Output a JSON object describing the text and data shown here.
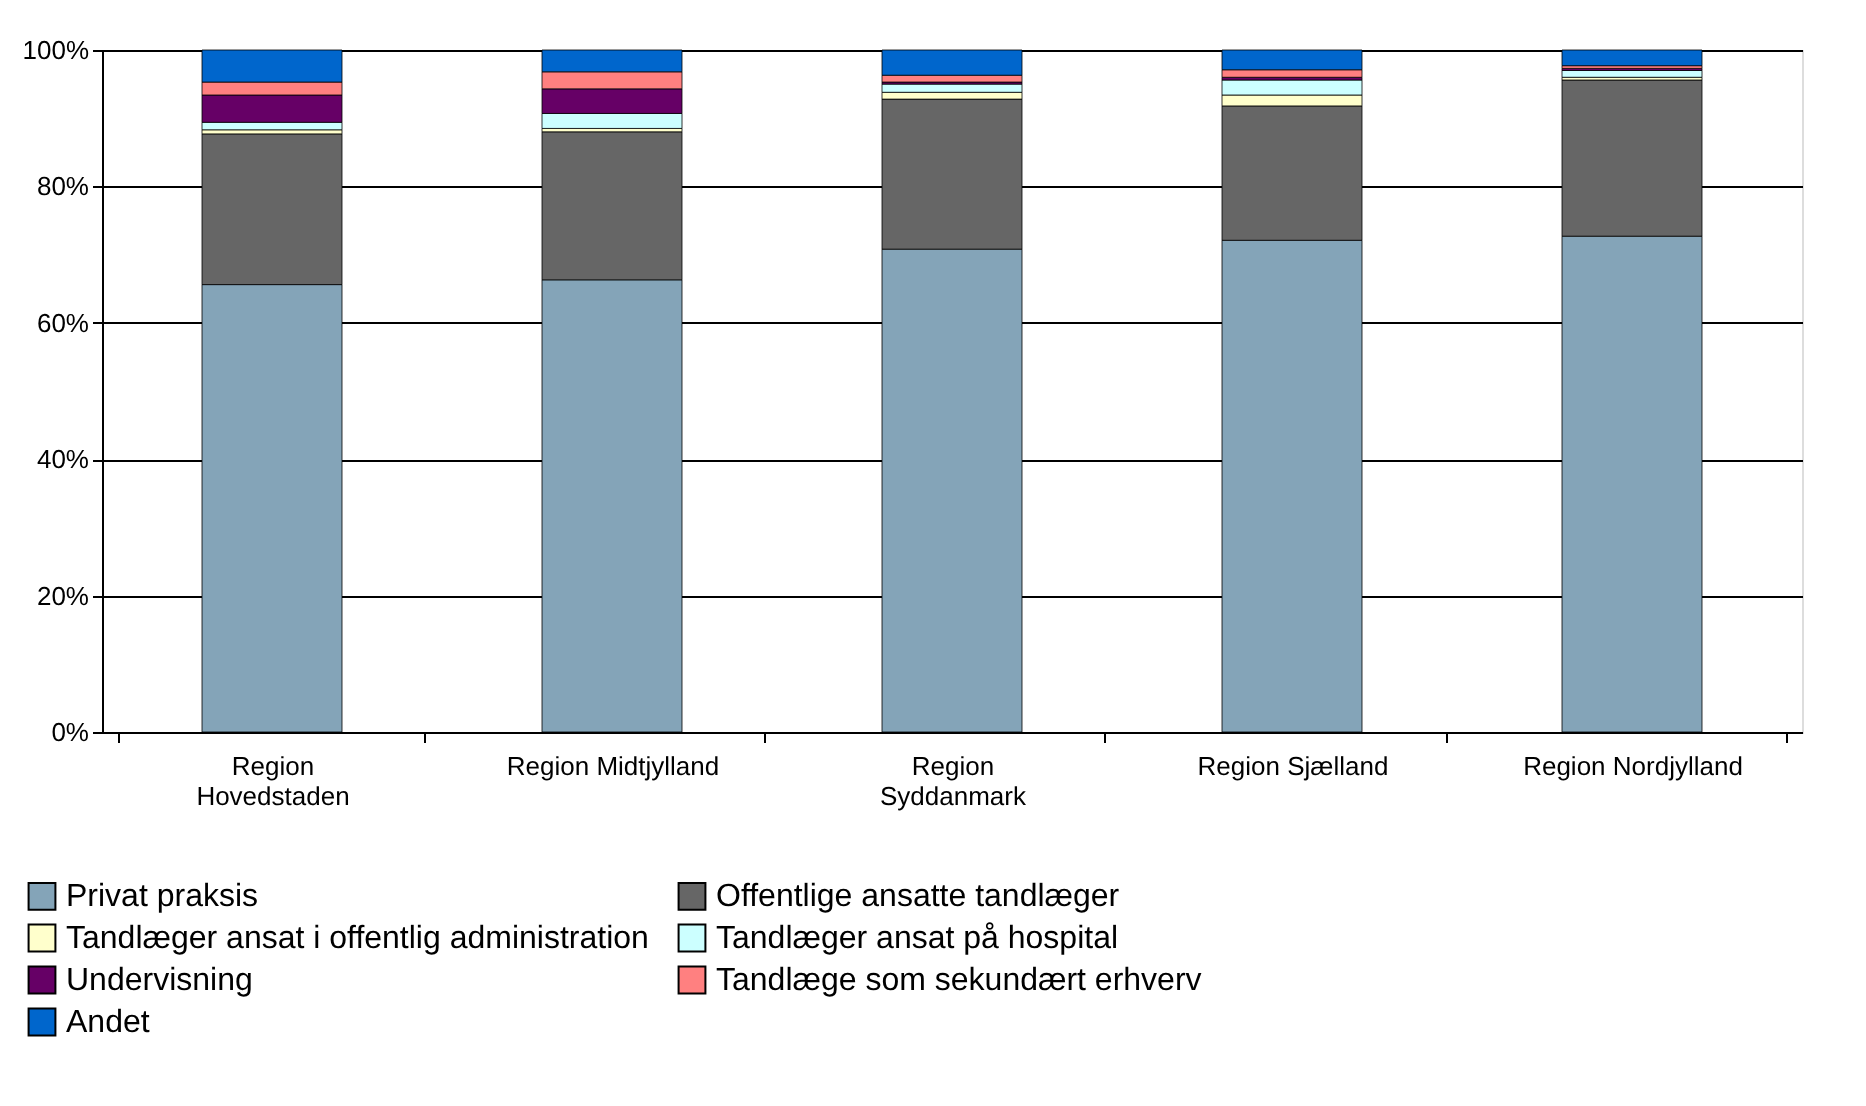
{
  "chart_data": {
    "type": "bar",
    "stacked": true,
    "categories": [
      "Region\nHovedstaden",
      "Region Midtjylland",
      "Region\nSyddanmark",
      "Region Sjælland",
      "Region Nordjylland"
    ],
    "series": [
      {
        "name": "Privat praksis",
        "color": "#84a4b8",
        "values": [
          65.6,
          66.3,
          70.8,
          72.1,
          72.7
        ]
      },
      {
        "name": "Offentlige ansatte tandlæger",
        "color": "#666666",
        "values": [
          22.1,
          21.7,
          22.0,
          19.7,
          22.9
        ]
      },
      {
        "name": "Tandlæger ansat i offentlig administration",
        "color": "#ffffcc",
        "values": [
          0.6,
          0.5,
          1.0,
          1.6,
          0.4
        ]
      },
      {
        "name": "Tandlæger ansat på hospital",
        "color": "#ccffff",
        "values": [
          1.1,
          2.2,
          1.2,
          2.2,
          1.0
        ]
      },
      {
        "name": "Undervisning",
        "color": "#660066",
        "values": [
          4.0,
          3.6,
          0.3,
          0.4,
          0.3
        ]
      },
      {
        "name": "Tandlæge som sekundært erhverv",
        "color": "#ff8080",
        "values": [
          1.9,
          2.5,
          1.0,
          1.1,
          0.4
        ]
      },
      {
        "name": "Andet",
        "color": "#0066cc",
        "values": [
          4.7,
          3.2,
          3.7,
          2.9,
          2.3
        ]
      }
    ],
    "ylim": [
      0,
      100
    ],
    "yticks": [
      {
        "value": 0,
        "label": "0%"
      },
      {
        "value": 20,
        "label": "20%"
      },
      {
        "value": 40,
        "label": "40%"
      },
      {
        "value": 60,
        "label": "60%"
      },
      {
        "value": 80,
        "label": "80%"
      },
      {
        "value": 100,
        "label": "100%"
      }
    ],
    "grid": "y",
    "legend": "bottom"
  }
}
